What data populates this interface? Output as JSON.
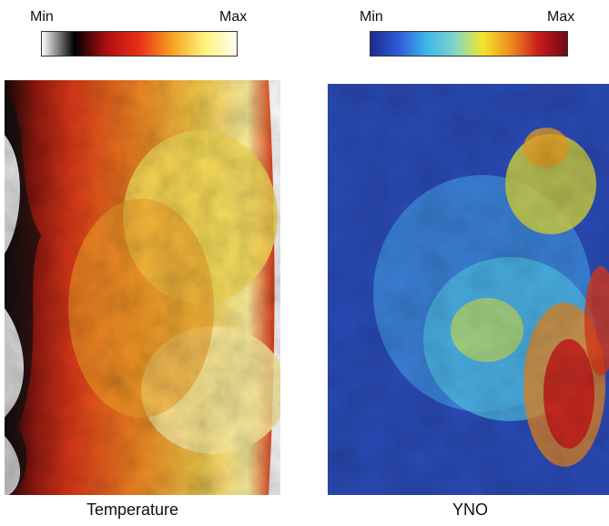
{
  "colorbars": [
    {
      "min_label": "Min",
      "max_label": "Max",
      "colormap": "hot",
      "colors": [
        "#ffffff",
        "#000000",
        "#b01010",
        "#e83018",
        "#f7a020",
        "#fff27a",
        "#fffff0"
      ]
    },
    {
      "min_label": "Min",
      "max_label": "Max",
      "colormap": "jet",
      "colors": [
        "#1a2a8c",
        "#2e5bd8",
        "#3fb6ea",
        "#7fd6c8",
        "#f2e52a",
        "#f08a1e",
        "#c81a1a",
        "#6e0a14"
      ]
    }
  ],
  "panels": [
    {
      "caption": "Temperature",
      "colormap": "hot"
    },
    {
      "caption": "YNO",
      "colormap": "jet"
    }
  ]
}
